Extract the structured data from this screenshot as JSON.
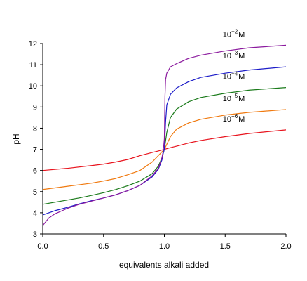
{
  "chart_data": {
    "type": "line",
    "xlabel": "equivalents alkali added",
    "ylabel": "pH",
    "xlim": [
      0,
      2
    ],
    "ylim": [
      3,
      12
    ],
    "xticks": [
      "0.0",
      "0.5",
      "1.0",
      "1.5",
      "2.0"
    ],
    "yticks": [
      "3",
      "4",
      "5",
      "6",
      "7",
      "8",
      "9",
      "10",
      "11",
      "12"
    ],
    "grid": false,
    "legend": "none",
    "series": [
      {
        "name": "10-2 M",
        "label_base": "10",
        "label_exp": "−2",
        "label_unit": "M",
        "color": "#8b1a9e",
        "x": [
          0.0,
          0.05,
          0.1,
          0.2,
          0.3,
          0.4,
          0.5,
          0.6,
          0.7,
          0.8,
          0.9,
          0.95,
          0.98,
          0.99,
          1.0,
          1.005,
          1.01,
          1.02,
          1.05,
          1.1,
          1.2,
          1.3,
          1.5,
          1.7,
          2.0
        ],
        "y": [
          3.4,
          3.75,
          3.95,
          4.2,
          4.4,
          4.55,
          4.7,
          4.85,
          5.05,
          5.3,
          5.75,
          6.1,
          6.6,
          6.9,
          7.5,
          9.5,
          10.3,
          10.6,
          10.9,
          11.05,
          11.3,
          11.45,
          11.65,
          11.8,
          11.92
        ]
      },
      {
        "name": "10-3 M",
        "label_base": "10",
        "label_exp": "−3",
        "label_unit": "M",
        "color": "#1c1cc8",
        "x": [
          0.0,
          0.05,
          0.1,
          0.2,
          0.3,
          0.4,
          0.5,
          0.6,
          0.7,
          0.8,
          0.9,
          0.95,
          0.98,
          0.99,
          1.0,
          1.01,
          1.02,
          1.05,
          1.1,
          1.2,
          1.3,
          1.5,
          1.7,
          2.0
        ],
        "y": [
          3.9,
          4.0,
          4.1,
          4.25,
          4.42,
          4.57,
          4.7,
          4.85,
          5.05,
          5.3,
          5.7,
          6.05,
          6.5,
          6.8,
          7.0,
          8.3,
          9.1,
          9.6,
          9.9,
          10.2,
          10.4,
          10.6,
          10.75,
          10.9
        ]
      },
      {
        "name": "10-4 M",
        "label_base": "10",
        "label_exp": "−4",
        "label_unit": "M",
        "color": "#1a7a1a",
        "x": [
          0.0,
          0.1,
          0.2,
          0.3,
          0.4,
          0.5,
          0.6,
          0.7,
          0.8,
          0.9,
          0.95,
          0.98,
          1.0,
          1.02,
          1.05,
          1.1,
          1.2,
          1.3,
          1.5,
          1.7,
          2.0
        ],
        "y": [
          4.4,
          4.5,
          4.6,
          4.7,
          4.82,
          4.95,
          5.1,
          5.28,
          5.5,
          5.85,
          6.2,
          6.6,
          7.0,
          7.8,
          8.5,
          8.9,
          9.25,
          9.45,
          9.65,
          9.8,
          9.92
        ]
      },
      {
        "name": "10-5 M",
        "label_base": "10",
        "label_exp": "−5",
        "label_unit": "M",
        "color": "#f07a10",
        "x": [
          0.0,
          0.2,
          0.4,
          0.5,
          0.6,
          0.7,
          0.8,
          0.9,
          0.95,
          1.0,
          1.05,
          1.1,
          1.2,
          1.3,
          1.5,
          1.7,
          2.0
        ],
        "y": [
          5.1,
          5.25,
          5.4,
          5.5,
          5.62,
          5.8,
          6.0,
          6.4,
          6.7,
          7.0,
          7.6,
          7.95,
          8.25,
          8.42,
          8.62,
          8.75,
          8.88
        ]
      },
      {
        "name": "10-6 M",
        "label_base": "10",
        "label_exp": "−6",
        "label_unit": "M",
        "color": "#e8141e",
        "x": [
          0.0,
          0.2,
          0.4,
          0.5,
          0.6,
          0.7,
          0.8,
          0.9,
          0.95,
          1.0,
          1.05,
          1.1,
          1.2,
          1.3,
          1.5,
          1.7,
          2.0
        ],
        "y": [
          6.0,
          6.1,
          6.23,
          6.3,
          6.4,
          6.52,
          6.7,
          6.85,
          6.92,
          7.0,
          7.08,
          7.15,
          7.3,
          7.42,
          7.6,
          7.75,
          7.92
        ]
      }
    ]
  }
}
